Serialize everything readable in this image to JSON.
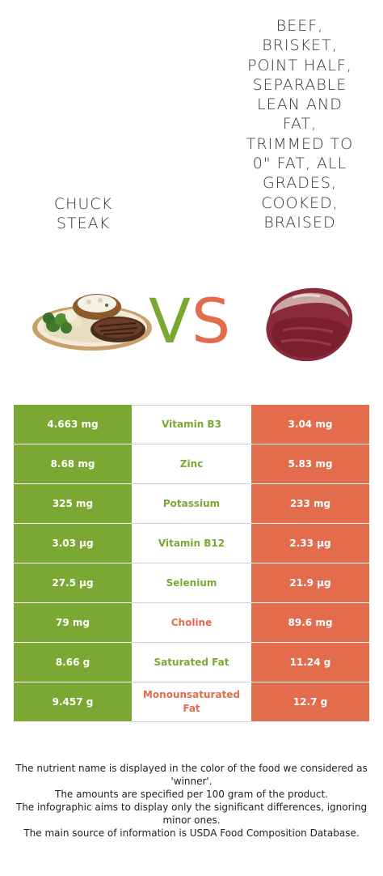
{
  "food_left": {
    "title": "Chuck\nsteak"
  },
  "food_right": {
    "title": "Beef, brisket, point half, separable lean and fat, trimmed to 0\" fat, all grades, cooked, braised"
  },
  "vs": {
    "v": "V",
    "s": "S"
  },
  "colors": {
    "left": "#7ba733",
    "right": "#e26c4b"
  },
  "rows": [
    {
      "left": "4.663 mg",
      "nutrient": "Vitamin B3",
      "right": "3.04 mg",
      "winner": "left"
    },
    {
      "left": "8.68 mg",
      "nutrient": "Zinc",
      "right": "5.83 mg",
      "winner": "left"
    },
    {
      "left": "325 mg",
      "nutrient": "Potassium",
      "right": "233 mg",
      "winner": "left"
    },
    {
      "left": "3.03 µg",
      "nutrient": "Vitamin B12",
      "right": "2.33 µg",
      "winner": "left"
    },
    {
      "left": "27.5 µg",
      "nutrient": "Selenium",
      "right": "21.9 µg",
      "winner": "left"
    },
    {
      "left": "79 mg",
      "nutrient": "Choline",
      "right": "89.6 mg",
      "winner": "right"
    },
    {
      "left": "8.66 g",
      "nutrient": "Saturated Fat",
      "right": "11.24 g",
      "winner": "left"
    },
    {
      "left": "9.457 g",
      "nutrient": "Monounsaturated Fat",
      "right": "12.7 g",
      "winner": "right"
    }
  ],
  "footer": {
    "line1": "The nutrient name is displayed in the color of the food we considered as 'winner'.",
    "line2": "The amounts are specified per 100 gram of the product.",
    "line3": "The infographic aims to display only the significant differences, ignoring minor ones.",
    "line4": "The main source of information is USDA Food Composition Database."
  }
}
